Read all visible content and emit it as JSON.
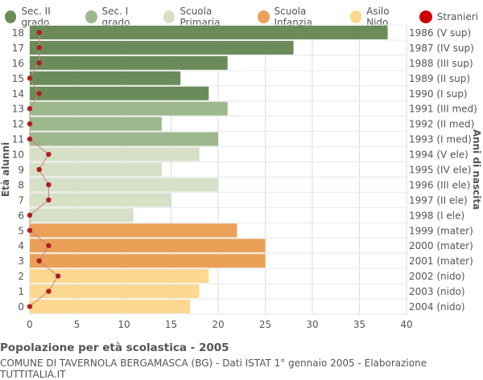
{
  "chart_data": {
    "type": "bar",
    "orientation": "horizontal",
    "title": "Popolazione per età scolastica - 2005",
    "subtitle": "COMUNE DI TAVERNOLA BERGAMASCA (BG) - Dati ISTAT 1° gennaio 2005 - Elaborazione TUTTITALIA.IT",
    "ylabel": "Età alunni",
    "ylabel_right": "Anni di nascita",
    "xlim": [
      0,
      40
    ],
    "xticks": [
      0,
      5,
      10,
      15,
      20,
      25,
      30,
      35,
      40
    ],
    "grid": true,
    "legend_position": "top",
    "legend": [
      {
        "name": "Sec. II grado",
        "color": "#6b8c5a"
      },
      {
        "name": "Sec. I grado",
        "color": "#9cb88c"
      },
      {
        "name": "Scuola Primaria",
        "color": "#d5e0c6"
      },
      {
        "name": "Scuola Infanzia",
        "color": "#eba058"
      },
      {
        "name": "Asilo Nido",
        "color": "#fdd890"
      },
      {
        "name": "Stranieri",
        "color": "#cc0000"
      }
    ],
    "rows": [
      {
        "age": "18",
        "birth": "1986 (V sup)",
        "value": 38,
        "stranieri": 1,
        "group": 0
      },
      {
        "age": "17",
        "birth": "1987 (IV sup)",
        "value": 28,
        "stranieri": 1,
        "group": 0
      },
      {
        "age": "16",
        "birth": "1988 (III sup)",
        "value": 21,
        "stranieri": 1,
        "group": 0
      },
      {
        "age": "15",
        "birth": "1989 (II sup)",
        "value": 16,
        "stranieri": 0,
        "group": 0
      },
      {
        "age": "14",
        "birth": "1990 (I sup)",
        "value": 19,
        "stranieri": 1,
        "group": 0
      },
      {
        "age": "13",
        "birth": "1991 (III med)",
        "value": 21,
        "stranieri": 0,
        "group": 1
      },
      {
        "age": "12",
        "birth": "1992 (II med)",
        "value": 14,
        "stranieri": 0,
        "group": 1
      },
      {
        "age": "11",
        "birth": "1993 (I med)",
        "value": 20,
        "stranieri": 0,
        "group": 1
      },
      {
        "age": "10",
        "birth": "1994 (V ele)",
        "value": 18,
        "stranieri": 2,
        "group": 2
      },
      {
        "age": "9",
        "birth": "1995 (IV ele)",
        "value": 14,
        "stranieri": 1,
        "group": 2
      },
      {
        "age": "8",
        "birth": "1996 (III ele)",
        "value": 20,
        "stranieri": 2,
        "group": 2
      },
      {
        "age": "7",
        "birth": "1997 (II ele)",
        "value": 15,
        "stranieri": 2,
        "group": 2
      },
      {
        "age": "6",
        "birth": "1998 (I ele)",
        "value": 11,
        "stranieri": 0,
        "group": 2
      },
      {
        "age": "5",
        "birth": "1999 (mater)",
        "value": 22,
        "stranieri": 0,
        "group": 3
      },
      {
        "age": "4",
        "birth": "2000 (mater)",
        "value": 25,
        "stranieri": 2,
        "group": 3
      },
      {
        "age": "3",
        "birth": "2001 (mater)",
        "value": 25,
        "stranieri": 1,
        "group": 3
      },
      {
        "age": "2",
        "birth": "2002 (nido)",
        "value": 19,
        "stranieri": 3,
        "group": 4
      },
      {
        "age": "1",
        "birth": "2003 (nido)",
        "value": 18,
        "stranieri": 2,
        "group": 4
      },
      {
        "age": "0",
        "birth": "2004 (nido)",
        "value": 17,
        "stranieri": 0,
        "group": 4
      }
    ]
  }
}
